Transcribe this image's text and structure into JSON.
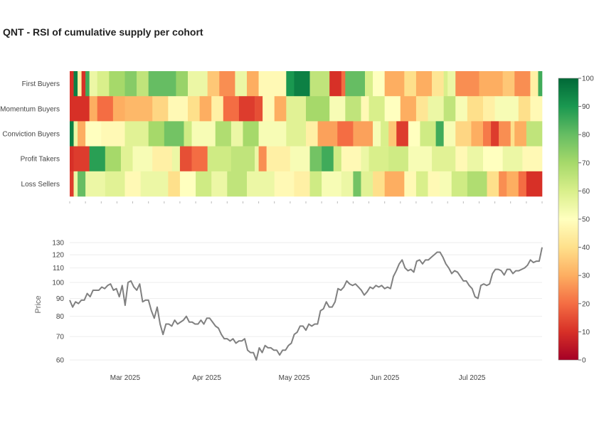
{
  "chart_data": {
    "title": "QNT - RSI of cumulative supply per cohort",
    "heatmap": {
      "type": "heatmap",
      "rows": [
        "First Buyers",
        "Momentum Buyers",
        "Conviction Buyers",
        "Profit Takers",
        "Loss Sellers"
      ],
      "n_cols": 120,
      "segments": [
        [
          [
            0,
            1,
            10
          ],
          [
            1,
            2,
            95
          ],
          [
            2,
            3,
            45
          ],
          [
            3,
            4,
            10
          ],
          [
            4,
            5,
            85
          ],
          [
            5,
            7,
            55
          ],
          [
            7,
            10,
            60
          ],
          [
            10,
            14,
            70
          ],
          [
            14,
            17,
            75
          ],
          [
            17,
            20,
            65
          ],
          [
            20,
            27,
            80
          ],
          [
            27,
            30,
            72
          ],
          [
            30,
            35,
            55
          ],
          [
            35,
            38,
            35
          ],
          [
            38,
            42,
            25
          ],
          [
            42,
            45,
            55
          ],
          [
            45,
            48,
            30
          ],
          [
            48,
            55,
            48
          ],
          [
            55,
            57,
            90
          ],
          [
            57,
            61,
            95
          ],
          [
            61,
            66,
            65
          ],
          [
            66,
            69,
            10
          ],
          [
            69,
            70,
            20
          ],
          [
            70,
            75,
            80
          ],
          [
            75,
            77,
            60
          ],
          [
            77,
            80,
            50
          ],
          [
            80,
            85,
            30
          ],
          [
            85,
            88,
            40
          ],
          [
            88,
            92,
            30
          ],
          [
            92,
            95,
            42
          ],
          [
            95,
            96,
            60
          ],
          [
            96,
            98,
            55
          ],
          [
            98,
            104,
            25
          ],
          [
            104,
            110,
            30
          ],
          [
            110,
            113,
            35
          ],
          [
            113,
            117,
            25
          ],
          [
            117,
            119,
            45
          ],
          [
            119,
            120,
            85
          ]
        ],
        [
          [
            0,
            5,
            10
          ],
          [
            5,
            7,
            30
          ],
          [
            7,
            11,
            20
          ],
          [
            11,
            14,
            30
          ],
          [
            14,
            21,
            32
          ],
          [
            21,
            25,
            38
          ],
          [
            25,
            30,
            48
          ],
          [
            30,
            33,
            40
          ],
          [
            33,
            36,
            30
          ],
          [
            36,
            39,
            45
          ],
          [
            39,
            43,
            20
          ],
          [
            43,
            47,
            12
          ],
          [
            47,
            49,
            15
          ],
          [
            49,
            52,
            48
          ],
          [
            52,
            55,
            30
          ],
          [
            55,
            60,
            58
          ],
          [
            60,
            66,
            70
          ],
          [
            66,
            70,
            52
          ],
          [
            70,
            74,
            65
          ],
          [
            74,
            76,
            48
          ],
          [
            76,
            80,
            60
          ],
          [
            80,
            84,
            50
          ],
          [
            84,
            88,
            30
          ],
          [
            88,
            91,
            42
          ],
          [
            91,
            95,
            55
          ],
          [
            95,
            98,
            65
          ],
          [
            98,
            101,
            52
          ],
          [
            101,
            105,
            40
          ],
          [
            105,
            108,
            45
          ],
          [
            108,
            114,
            52
          ],
          [
            114,
            117,
            40
          ],
          [
            117,
            120,
            48
          ]
        ],
        [
          [
            0,
            1,
            95
          ],
          [
            1,
            2,
            55
          ],
          [
            2,
            4,
            30
          ],
          [
            4,
            8,
            50
          ],
          [
            8,
            14,
            48
          ],
          [
            14,
            20,
            58
          ],
          [
            20,
            24,
            70
          ],
          [
            24,
            29,
            78
          ],
          [
            29,
            31,
            62
          ],
          [
            31,
            37,
            52
          ],
          [
            37,
            41,
            68
          ],
          [
            41,
            44,
            55
          ],
          [
            44,
            48,
            70
          ],
          [
            48,
            55,
            52
          ],
          [
            55,
            60,
            58
          ],
          [
            60,
            63,
            45
          ],
          [
            63,
            68,
            28
          ],
          [
            68,
            72,
            20
          ],
          [
            72,
            77,
            28
          ],
          [
            77,
            79,
            52
          ],
          [
            79,
            81,
            60
          ],
          [
            81,
            83,
            35
          ],
          [
            83,
            86,
            12
          ],
          [
            86,
            89,
            50
          ],
          [
            89,
            93,
            62
          ],
          [
            93,
            95,
            85
          ],
          [
            95,
            98,
            52
          ],
          [
            98,
            102,
            38
          ],
          [
            102,
            105,
            30
          ],
          [
            105,
            107,
            22
          ],
          [
            107,
            109,
            12
          ],
          [
            109,
            112,
            25
          ],
          [
            112,
            113,
            40
          ],
          [
            113,
            116,
            30
          ],
          [
            116,
            120,
            65
          ]
        ],
        [
          [
            0,
            1,
            10
          ],
          [
            1,
            5,
            12
          ],
          [
            5,
            9,
            88
          ],
          [
            9,
            13,
            70
          ],
          [
            13,
            16,
            58
          ],
          [
            16,
            21,
            52
          ],
          [
            21,
            26,
            45
          ],
          [
            26,
            28,
            55
          ],
          [
            28,
            31,
            15
          ],
          [
            31,
            35,
            20
          ],
          [
            35,
            41,
            62
          ],
          [
            41,
            47,
            65
          ],
          [
            47,
            48,
            55
          ],
          [
            48,
            50,
            25
          ],
          [
            50,
            56,
            45
          ],
          [
            56,
            61,
            52
          ],
          [
            61,
            64,
            78
          ],
          [
            64,
            67,
            85
          ],
          [
            67,
            69,
            62
          ],
          [
            69,
            74,
            48
          ],
          [
            74,
            76,
            55
          ],
          [
            76,
            81,
            60
          ],
          [
            81,
            86,
            62
          ],
          [
            86,
            92,
            52
          ],
          [
            92,
            98,
            58
          ],
          [
            98,
            101,
            48
          ],
          [
            101,
            105,
            55
          ],
          [
            105,
            110,
            50
          ],
          [
            110,
            115,
            55
          ],
          [
            115,
            120,
            48
          ]
        ],
        [
          [
            0,
            1,
            12
          ],
          [
            1,
            2,
            55
          ],
          [
            2,
            4,
            80
          ],
          [
            4,
            9,
            55
          ],
          [
            9,
            14,
            58
          ],
          [
            14,
            18,
            48
          ],
          [
            18,
            25,
            55
          ],
          [
            25,
            28,
            40
          ],
          [
            28,
            32,
            50
          ],
          [
            32,
            36,
            62
          ],
          [
            36,
            40,
            55
          ],
          [
            40,
            45,
            65
          ],
          [
            45,
            52,
            55
          ],
          [
            52,
            57,
            48
          ],
          [
            57,
            61,
            45
          ],
          [
            61,
            64,
            62
          ],
          [
            64,
            69,
            52
          ],
          [
            69,
            72,
            55
          ],
          [
            72,
            74,
            78
          ],
          [
            74,
            77,
            58
          ],
          [
            77,
            80,
            40
          ],
          [
            80,
            85,
            30
          ],
          [
            85,
            88,
            48
          ],
          [
            88,
            91,
            60
          ],
          [
            91,
            94,
            48
          ],
          [
            94,
            97,
            52
          ],
          [
            97,
            101,
            62
          ],
          [
            101,
            106,
            68
          ],
          [
            106,
            109,
            40
          ],
          [
            109,
            111,
            25
          ],
          [
            111,
            114,
            30
          ],
          [
            114,
            116,
            20
          ],
          [
            116,
            120,
            10
          ]
        ]
      ],
      "colorbar": {
        "ticks": [
          0,
          10,
          20,
          30,
          40,
          50,
          60,
          70,
          80,
          90,
          100
        ],
        "range": [
          0,
          100
        ],
        "colorscale": "RdYlGn"
      }
    },
    "price": {
      "type": "line",
      "ylabel": "Price",
      "yscale": "log",
      "ylim": [
        58,
        133
      ],
      "yticks": [
        60,
        70,
        80,
        90,
        100,
        110,
        120,
        130
      ],
      "xticks": [
        {
          "label": "Mar 2025",
          "day": 19
        },
        {
          "label": "Apr 2025",
          "day": 47
        },
        {
          "label": "May 2025",
          "day": 77
        },
        {
          "label": "Jun 2025",
          "day": 108
        },
        {
          "label": "Jul 2025",
          "day": 138
        }
      ],
      "n_days": 163,
      "values": [
        89,
        85,
        88,
        87,
        89,
        89,
        93,
        91,
        95,
        95,
        95,
        97,
        96,
        98,
        99,
        95,
        96,
        91,
        98,
        86,
        100,
        101,
        97,
        95,
        99,
        88,
        89,
        89,
        83,
        79,
        85,
        76,
        71,
        76,
        76,
        75,
        78,
        76,
        77,
        78,
        80,
        77,
        77,
        76,
        76,
        78,
        76,
        79,
        79,
        77,
        75,
        74,
        71,
        69,
        69,
        68,
        69,
        67,
        68,
        68,
        69,
        64,
        63,
        63,
        60,
        65,
        63,
        66,
        65,
        65,
        64,
        64,
        62,
        64,
        64,
        66,
        67,
        71,
        72,
        75,
        75,
        73,
        76,
        75,
        76,
        76,
        83,
        84,
        88,
        85,
        85,
        88,
        96,
        95,
        97,
        101,
        99,
        98,
        99,
        97,
        95,
        92,
        94,
        97,
        96,
        98,
        97,
        98,
        96,
        97,
        96,
        104,
        108,
        113,
        116,
        110,
        108,
        109,
        107,
        115,
        116,
        113,
        116,
        116,
        118,
        120,
        122,
        122,
        118,
        113,
        110,
        106,
        108,
        107,
        104,
        101,
        101,
        98,
        96,
        91,
        90,
        98,
        99,
        98,
        99,
        106,
        109,
        109,
        108,
        105,
        109,
        109,
        106,
        108,
        108,
        109,
        110,
        112,
        116,
        114,
        115,
        115,
        126
      ]
    }
  }
}
